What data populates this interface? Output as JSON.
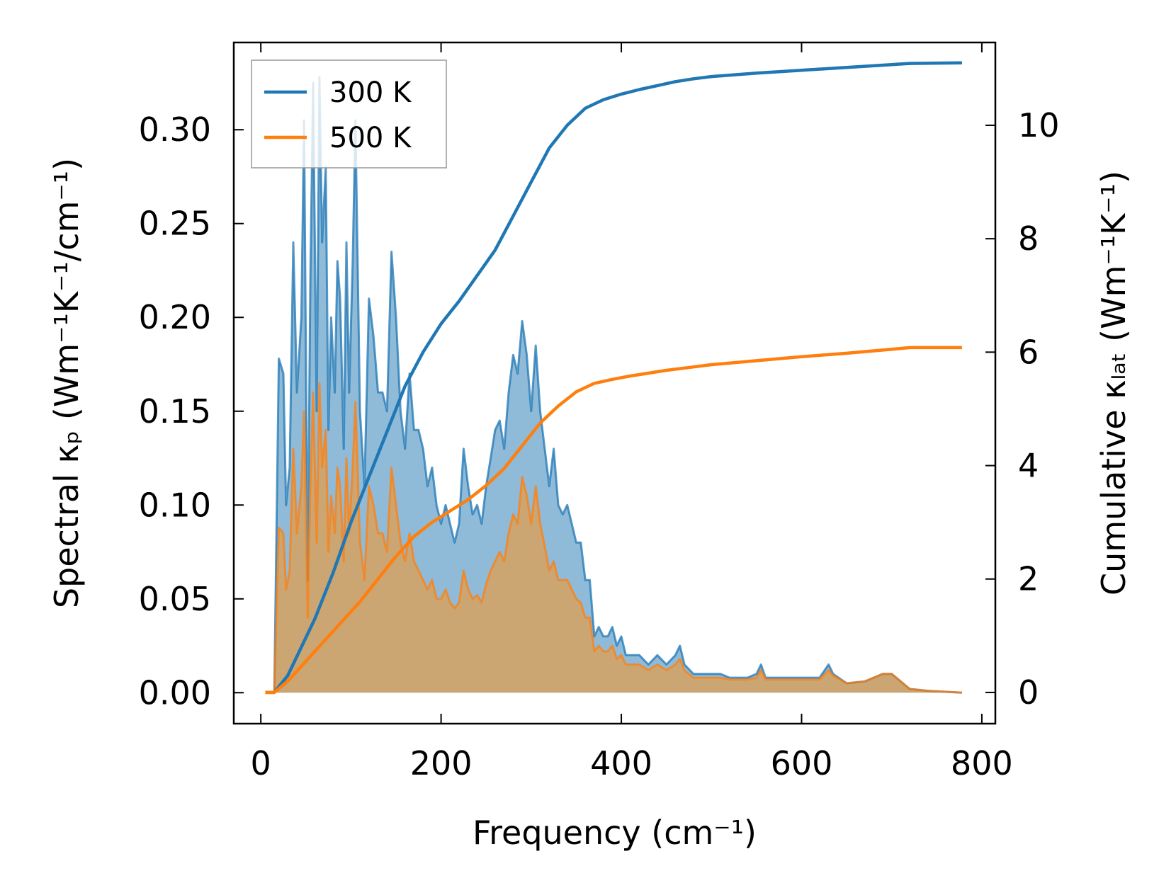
{
  "chart_data": {
    "type": "line",
    "xlabel": "Frequency (cm⁻¹)",
    "ylabel_left": "Spectral κₚ (Wm⁻¹K⁻¹/cm⁻¹)",
    "ylabel_right": "Cumulative κₗₐₜ (Wm⁻¹K⁻¹)",
    "xlim": [
      -30,
      815
    ],
    "ylim_left": [
      -0.0165,
      0.3465
    ],
    "ylim_right": [
      -0.55,
      11.46
    ],
    "x_ticks": [
      0,
      200,
      400,
      600,
      800
    ],
    "y_ticks_left": [
      0.0,
      0.05,
      0.1,
      0.15,
      0.2,
      0.25,
      0.3
    ],
    "y_ticks_right": [
      0,
      2,
      4,
      6,
      8,
      10
    ],
    "x_tick_labels": [
      "0",
      "200",
      "400",
      "600",
      "800"
    ],
    "y_tick_labels_left": [
      "0.00",
      "0.05",
      "0.10",
      "0.15",
      "0.20",
      "0.25",
      "0.30"
    ],
    "y_tick_labels_right": [
      "0",
      "2",
      "4",
      "6",
      "8",
      "10"
    ],
    "legend_position": "top-left",
    "grid": false,
    "series": [
      {
        "name": "300 K",
        "color": "#1f77b4",
        "fill_color": "#1f77b4",
        "fill_opacity": 0.5,
        "spectral": [
          [
            5,
            0.0
          ],
          [
            15,
            0.0
          ],
          [
            20,
            0.178
          ],
          [
            25,
            0.17
          ],
          [
            28,
            0.1
          ],
          [
            32,
            0.12
          ],
          [
            36,
            0.24
          ],
          [
            40,
            0.16
          ],
          [
            45,
            0.2
          ],
          [
            48,
            0.305
          ],
          [
            52,
            0.06
          ],
          [
            55,
            0.22
          ],
          [
            58,
            0.325
          ],
          [
            62,
            0.15
          ],
          [
            65,
            0.328
          ],
          [
            68,
            0.24
          ],
          [
            72,
            0.28
          ],
          [
            75,
            0.14
          ],
          [
            78,
            0.2
          ],
          [
            82,
            0.16
          ],
          [
            85,
            0.23
          ],
          [
            88,
            0.21
          ],
          [
            92,
            0.13
          ],
          [
            95,
            0.24
          ],
          [
            98,
            0.16
          ],
          [
            102,
            0.23
          ],
          [
            105,
            0.305
          ],
          [
            110,
            0.15
          ],
          [
            115,
            0.11
          ],
          [
            120,
            0.21
          ],
          [
            125,
            0.19
          ],
          [
            130,
            0.16
          ],
          [
            135,
            0.16
          ],
          [
            140,
            0.15
          ],
          [
            145,
            0.235
          ],
          [
            150,
            0.2
          ],
          [
            155,
            0.15
          ],
          [
            160,
            0.13
          ],
          [
            165,
            0.17
          ],
          [
            170,
            0.14
          ],
          [
            175,
            0.14
          ],
          [
            180,
            0.13
          ],
          [
            185,
            0.11
          ],
          [
            190,
            0.12
          ],
          [
            195,
            0.1
          ],
          [
            200,
            0.09
          ],
          [
            205,
            0.1
          ],
          [
            210,
            0.09
          ],
          [
            215,
            0.08
          ],
          [
            220,
            0.09
          ],
          [
            225,
            0.13
          ],
          [
            230,
            0.11
          ],
          [
            235,
            0.095
          ],
          [
            240,
            0.1
          ],
          [
            245,
            0.09
          ],
          [
            250,
            0.11
          ],
          [
            255,
            0.125
          ],
          [
            260,
            0.14
          ],
          [
            265,
            0.145
          ],
          [
            270,
            0.13
          ],
          [
            275,
            0.16
          ],
          [
            280,
            0.18
          ],
          [
            285,
            0.17
          ],
          [
            290,
            0.198
          ],
          [
            295,
            0.18
          ],
          [
            300,
            0.15
          ],
          [
            305,
            0.185
          ],
          [
            310,
            0.15
          ],
          [
            315,
            0.13
          ],
          [
            320,
            0.11
          ],
          [
            325,
            0.13
          ],
          [
            330,
            0.1
          ],
          [
            335,
            0.095
          ],
          [
            340,
            0.1
          ],
          [
            345,
            0.09
          ],
          [
            350,
            0.08
          ],
          [
            355,
            0.08
          ],
          [
            360,
            0.06
          ],
          [
            365,
            0.06
          ],
          [
            370,
            0.03
          ],
          [
            375,
            0.035
          ],
          [
            380,
            0.03
          ],
          [
            385,
            0.03
          ],
          [
            390,
            0.035
          ],
          [
            395,
            0.025
          ],
          [
            400,
            0.03
          ],
          [
            405,
            0.02
          ],
          [
            410,
            0.02
          ],
          [
            420,
            0.02
          ],
          [
            430,
            0.015
          ],
          [
            440,
            0.02
          ],
          [
            450,
            0.015
          ],
          [
            460,
            0.02
          ],
          [
            465,
            0.025
          ],
          [
            470,
            0.015
          ],
          [
            480,
            0.01
          ],
          [
            500,
            0.01
          ],
          [
            510,
            0.01
          ],
          [
            520,
            0.008
          ],
          [
            540,
            0.008
          ],
          [
            550,
            0.01
          ],
          [
            555,
            0.015
          ],
          [
            560,
            0.008
          ],
          [
            580,
            0.008
          ],
          [
            600,
            0.008
          ],
          [
            620,
            0.008
          ],
          [
            630,
            0.015
          ],
          [
            635,
            0.01
          ],
          [
            650,
            0.005
          ],
          [
            670,
            0.006
          ],
          [
            680,
            0.008
          ],
          [
            690,
            0.01
          ],
          [
            700,
            0.01
          ],
          [
            720,
            0.002
          ],
          [
            740,
            0.001
          ],
          [
            778,
            0.0
          ]
        ],
        "cumulative": [
          [
            5,
            0.0
          ],
          [
            15,
            0.0
          ],
          [
            30,
            0.3
          ],
          [
            45,
            0.8
          ],
          [
            60,
            1.3
          ],
          [
            80,
            2.1
          ],
          [
            100,
            3.0
          ],
          [
            120,
            3.8
          ],
          [
            140,
            4.6
          ],
          [
            160,
            5.4
          ],
          [
            180,
            6.0
          ],
          [
            200,
            6.5
          ],
          [
            220,
            6.9
          ],
          [
            240,
            7.35
          ],
          [
            260,
            7.8
          ],
          [
            280,
            8.4
          ],
          [
            300,
            9.0
          ],
          [
            320,
            9.6
          ],
          [
            340,
            10.0
          ],
          [
            360,
            10.3
          ],
          [
            380,
            10.45
          ],
          [
            400,
            10.55
          ],
          [
            420,
            10.63
          ],
          [
            440,
            10.7
          ],
          [
            460,
            10.77
          ],
          [
            480,
            10.82
          ],
          [
            500,
            10.86
          ],
          [
            550,
            10.92
          ],
          [
            600,
            10.97
          ],
          [
            650,
            11.02
          ],
          [
            700,
            11.07
          ],
          [
            720,
            11.09
          ],
          [
            778,
            11.1
          ]
        ]
      },
      {
        "name": "500 K",
        "color": "#ff7f0e",
        "fill_color": "#d6a260",
        "fill_opacity": 0.85,
        "spectral": [
          [
            5,
            0.0
          ],
          [
            15,
            0.0
          ],
          [
            20,
            0.088
          ],
          [
            25,
            0.085
          ],
          [
            28,
            0.055
          ],
          [
            32,
            0.065
          ],
          [
            36,
            0.13
          ],
          [
            40,
            0.085
          ],
          [
            45,
            0.11
          ],
          [
            48,
            0.15
          ],
          [
            52,
            0.04
          ],
          [
            55,
            0.11
          ],
          [
            58,
            0.16
          ],
          [
            62,
            0.08
          ],
          [
            65,
            0.165
          ],
          [
            68,
            0.12
          ],
          [
            72,
            0.14
          ],
          [
            75,
            0.075
          ],
          [
            78,
            0.105
          ],
          [
            82,
            0.085
          ],
          [
            85,
            0.12
          ],
          [
            88,
            0.11
          ],
          [
            92,
            0.07
          ],
          [
            95,
            0.125
          ],
          [
            98,
            0.085
          ],
          [
            102,
            0.12
          ],
          [
            105,
            0.155
          ],
          [
            110,
            0.08
          ],
          [
            115,
            0.06
          ],
          [
            120,
            0.11
          ],
          [
            125,
            0.1
          ],
          [
            130,
            0.085
          ],
          [
            135,
            0.085
          ],
          [
            140,
            0.075
          ],
          [
            145,
            0.12
          ],
          [
            150,
            0.1
          ],
          [
            155,
            0.08
          ],
          [
            160,
            0.07
          ],
          [
            165,
            0.085
          ],
          [
            170,
            0.07
          ],
          [
            175,
            0.065
          ],
          [
            180,
            0.06
          ],
          [
            185,
            0.055
          ],
          [
            190,
            0.06
          ],
          [
            195,
            0.05
          ],
          [
            200,
            0.05
          ],
          [
            205,
            0.055
          ],
          [
            210,
            0.048
          ],
          [
            215,
            0.045
          ],
          [
            220,
            0.048
          ],
          [
            225,
            0.065
          ],
          [
            230,
            0.055
          ],
          [
            235,
            0.05
          ],
          [
            240,
            0.052
          ],
          [
            245,
            0.048
          ],
          [
            250,
            0.058
          ],
          [
            255,
            0.065
          ],
          [
            260,
            0.07
          ],
          [
            265,
            0.075
          ],
          [
            270,
            0.07
          ],
          [
            275,
            0.085
          ],
          [
            280,
            0.095
          ],
          [
            285,
            0.09
          ],
          [
            290,
            0.115
          ],
          [
            295,
            0.105
          ],
          [
            300,
            0.09
          ],
          [
            305,
            0.11
          ],
          [
            310,
            0.09
          ],
          [
            315,
            0.078
          ],
          [
            320,
            0.065
          ],
          [
            325,
            0.07
          ],
          [
            330,
            0.06
          ],
          [
            335,
            0.06
          ],
          [
            340,
            0.06
          ],
          [
            345,
            0.055
          ],
          [
            350,
            0.05
          ],
          [
            355,
            0.048
          ],
          [
            360,
            0.04
          ],
          [
            365,
            0.04
          ],
          [
            370,
            0.022
          ],
          [
            375,
            0.025
          ],
          [
            380,
            0.022
          ],
          [
            385,
            0.022
          ],
          [
            390,
            0.025
          ],
          [
            395,
            0.018
          ],
          [
            400,
            0.02
          ],
          [
            405,
            0.015
          ],
          [
            410,
            0.015
          ],
          [
            420,
            0.015
          ],
          [
            430,
            0.012
          ],
          [
            440,
            0.015
          ],
          [
            450,
            0.012
          ],
          [
            460,
            0.015
          ],
          [
            465,
            0.018
          ],
          [
            470,
            0.012
          ],
          [
            480,
            0.008
          ],
          [
            500,
            0.008
          ],
          [
            510,
            0.008
          ],
          [
            520,
            0.007
          ],
          [
            540,
            0.007
          ],
          [
            550,
            0.008
          ],
          [
            555,
            0.012
          ],
          [
            560,
            0.007
          ],
          [
            580,
            0.007
          ],
          [
            600,
            0.007
          ],
          [
            620,
            0.007
          ],
          [
            630,
            0.012
          ],
          [
            635,
            0.009
          ],
          [
            650,
            0.005
          ],
          [
            670,
            0.006
          ],
          [
            680,
            0.008
          ],
          [
            690,
            0.01
          ],
          [
            700,
            0.01
          ],
          [
            720,
            0.002
          ],
          [
            740,
            0.001
          ],
          [
            778,
            0.0
          ]
        ],
        "cumulative": [
          [
            5,
            0.0
          ],
          [
            15,
            0.0
          ],
          [
            30,
            0.2
          ],
          [
            50,
            0.55
          ],
          [
            70,
            0.9
          ],
          [
            90,
            1.25
          ],
          [
            110,
            1.6
          ],
          [
            130,
            2.0
          ],
          [
            150,
            2.4
          ],
          [
            170,
            2.75
          ],
          [
            190,
            3.0
          ],
          [
            210,
            3.2
          ],
          [
            230,
            3.4
          ],
          [
            250,
            3.65
          ],
          [
            270,
            3.95
          ],
          [
            290,
            4.35
          ],
          [
            310,
            4.75
          ],
          [
            330,
            5.05
          ],
          [
            350,
            5.3
          ],
          [
            370,
            5.45
          ],
          [
            390,
            5.52
          ],
          [
            410,
            5.58
          ],
          [
            430,
            5.63
          ],
          [
            450,
            5.68
          ],
          [
            470,
            5.72
          ],
          [
            500,
            5.78
          ],
          [
            550,
            5.85
          ],
          [
            600,
            5.92
          ],
          [
            650,
            5.98
          ],
          [
            700,
            6.05
          ],
          [
            720,
            6.08
          ],
          [
            778,
            6.08
          ]
        ]
      }
    ]
  }
}
